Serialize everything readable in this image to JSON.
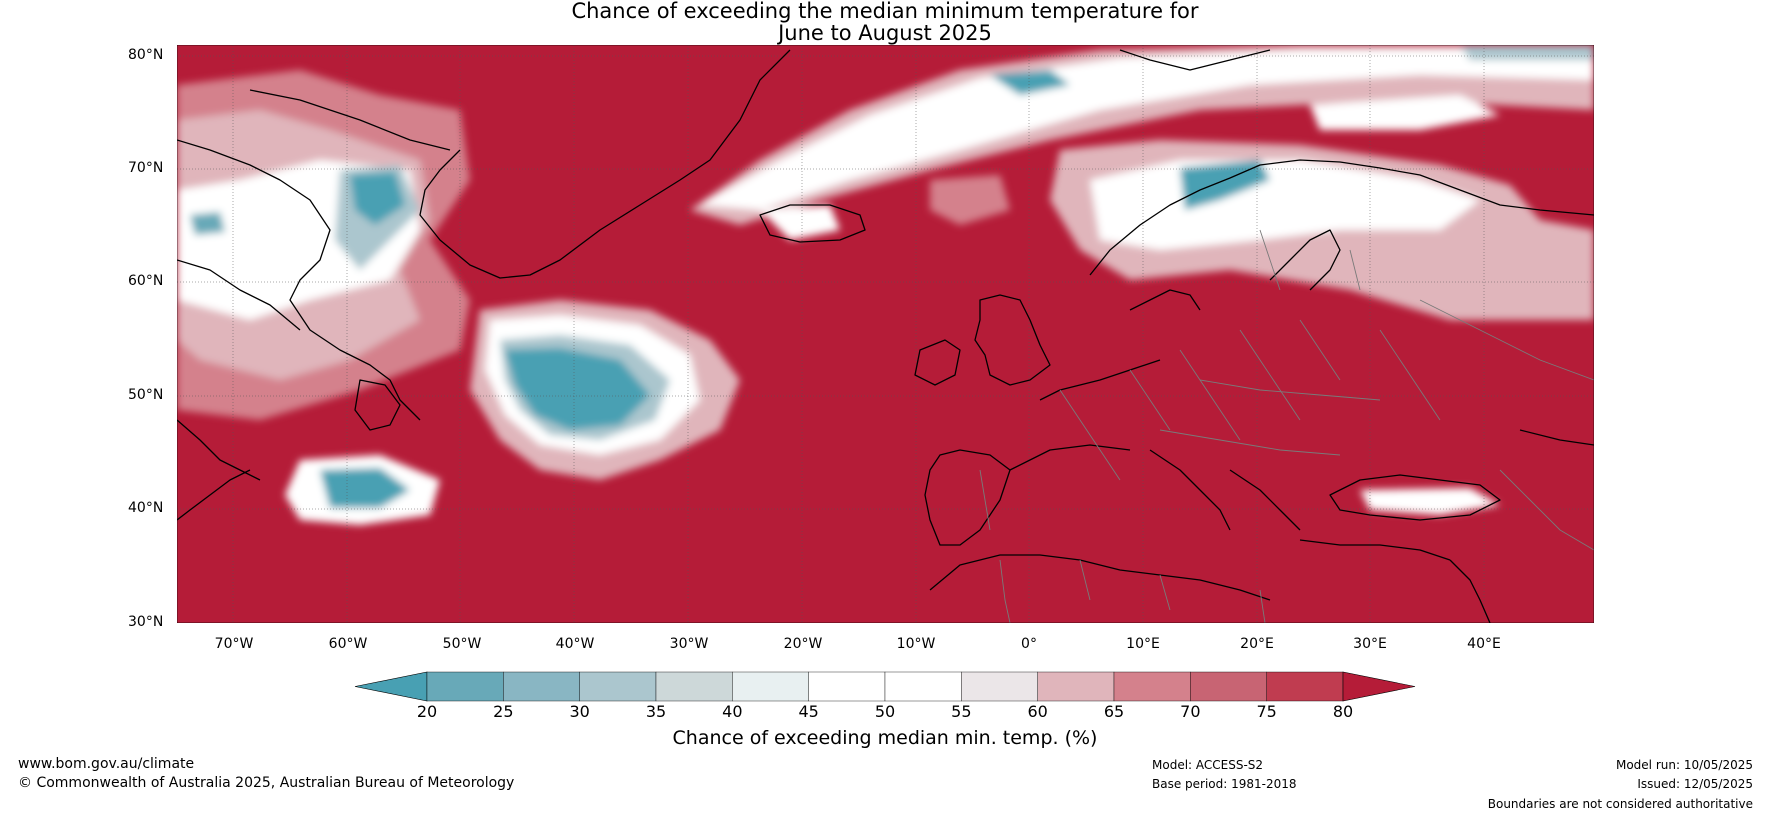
{
  "title_line1": "Chance of exceeding the median minimum temperature for",
  "title_line2": "June to August 2025",
  "lat_labels": [
    "80°N",
    "70°N",
    "60°N",
    "50°N",
    "40°N",
    "30°N"
  ],
  "lon_labels": [
    "70°W",
    "60°W",
    "50°W",
    "40°W",
    "30°W",
    "20°W",
    "10°W",
    "0°",
    "10°E",
    "20°E",
    "30°E",
    "40°E"
  ],
  "colorbar": {
    "ticks": [
      "20",
      "25",
      "30",
      "35",
      "40",
      "45",
      "50",
      "55",
      "60",
      "65",
      "70",
      "75",
      "80"
    ],
    "label": "Chance of exceeding median min. temp. (%)",
    "colors": [
      "#48a0b3",
      "#68a9b8",
      "#89b6c3",
      "#abc6ce",
      "#cdd8d9",
      "#e8f0f1",
      "#ffffff",
      "#ffffff",
      "#ebe6e8",
      "#e0b5bb",
      "#d4818c",
      "#c86473",
      "#c03c50",
      "#b51c38"
    ]
  },
  "map_colors": {
    "background": "#b51c38",
    "light_red": "#d4818c",
    "pale": "#e0b5bb",
    "white": "#ffffff",
    "light_blue": "#abc6ce",
    "blue": "#48a0b3",
    "coast": "#000000",
    "border": "#7a7a7a"
  },
  "footer": {
    "website": "www.bom.gov.au/climate",
    "copyright": "© Commonwealth of Australia 2025, Australian Bureau of Meteorology",
    "model": "Model: ACCESS-S2",
    "base_period": "Base period: 1981-2018",
    "model_run": "Model run: 10/05/2025",
    "issued": "Issued: 12/05/2025",
    "boundaries": "Boundaries are not considered authoritative"
  }
}
